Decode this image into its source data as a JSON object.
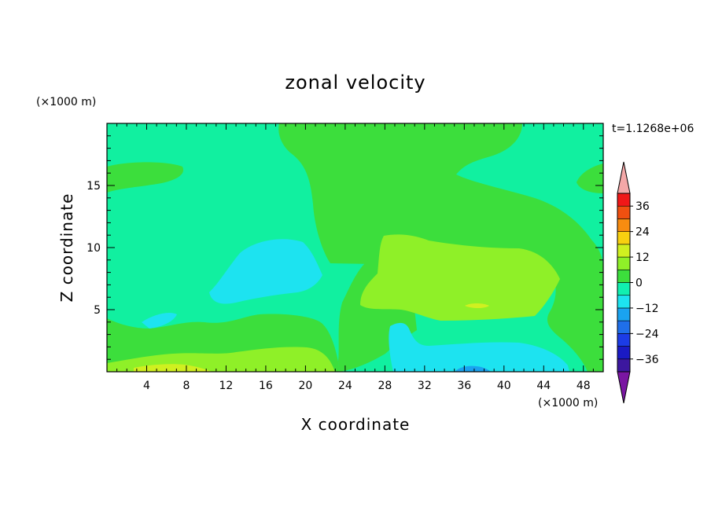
{
  "chart_data": {
    "type": "heatmap",
    "title": "zonal velocity",
    "xlabel": "X coordinate",
    "ylabel": "Z coordinate",
    "x_unit": "(×1000 m)",
    "y_unit": "(×1000 m)",
    "time_label": "t=1.1268e+06",
    "xlim": [
      0,
      50
    ],
    "ylim": [
      0,
      20
    ],
    "x_ticks": [
      4,
      8,
      12,
      16,
      20,
      24,
      28,
      32,
      36,
      40,
      44,
      48
    ],
    "y_ticks": [
      5,
      10,
      15
    ],
    "colorbar": {
      "levels": [
        -42,
        -36,
        -30,
        -24,
        -18,
        -12,
        -6,
        0,
        6,
        12,
        18,
        24,
        30,
        36,
        42
      ],
      "colors": [
        "#7a16a2",
        "#3c179f",
        "#1a1ac4",
        "#1c3ce6",
        "#1f6fea",
        "#1aa3f0",
        "#1de3f0",
        "#11f0b0",
        "#3cde3c",
        "#8ff028",
        "#d0f020",
        "#f8d010",
        "#f88c10",
        "#f05010",
        "#f01818",
        "#f4a8a8"
      ],
      "labels": [
        -36,
        -24,
        -12,
        0,
        12,
        24,
        36
      ]
    },
    "regions": [
      {
        "name": "background",
        "value": -3,
        "color": "#11f0a0"
      },
      {
        "name": "upper positive plume",
        "value": 2,
        "color": "#3cde3c"
      },
      {
        "name": "upper-left patch",
        "value": 2,
        "color": "#3cde3c"
      },
      {
        "name": "upper-right patch",
        "value": 2,
        "color": "#3cde3c"
      },
      {
        "name": "lower positive band",
        "value": 2,
        "color": "#3cde3c"
      },
      {
        "name": "mid positive core",
        "value": 8,
        "color": "#8ff028"
      },
      {
        "name": "near-surface positive",
        "value": 8,
        "color": "#8ff028"
      },
      {
        "name": "small maximum",
        "value": 14,
        "color": "#d0f020"
      },
      {
        "name": "mid negative core",
        "value": -8,
        "color": "#1de3f0"
      },
      {
        "name": "near-surface negative",
        "value": -8,
        "color": "#1de3f0"
      },
      {
        "name": "surface minimum",
        "value": -14,
        "color": "#1aa3f0"
      }
    ]
  }
}
